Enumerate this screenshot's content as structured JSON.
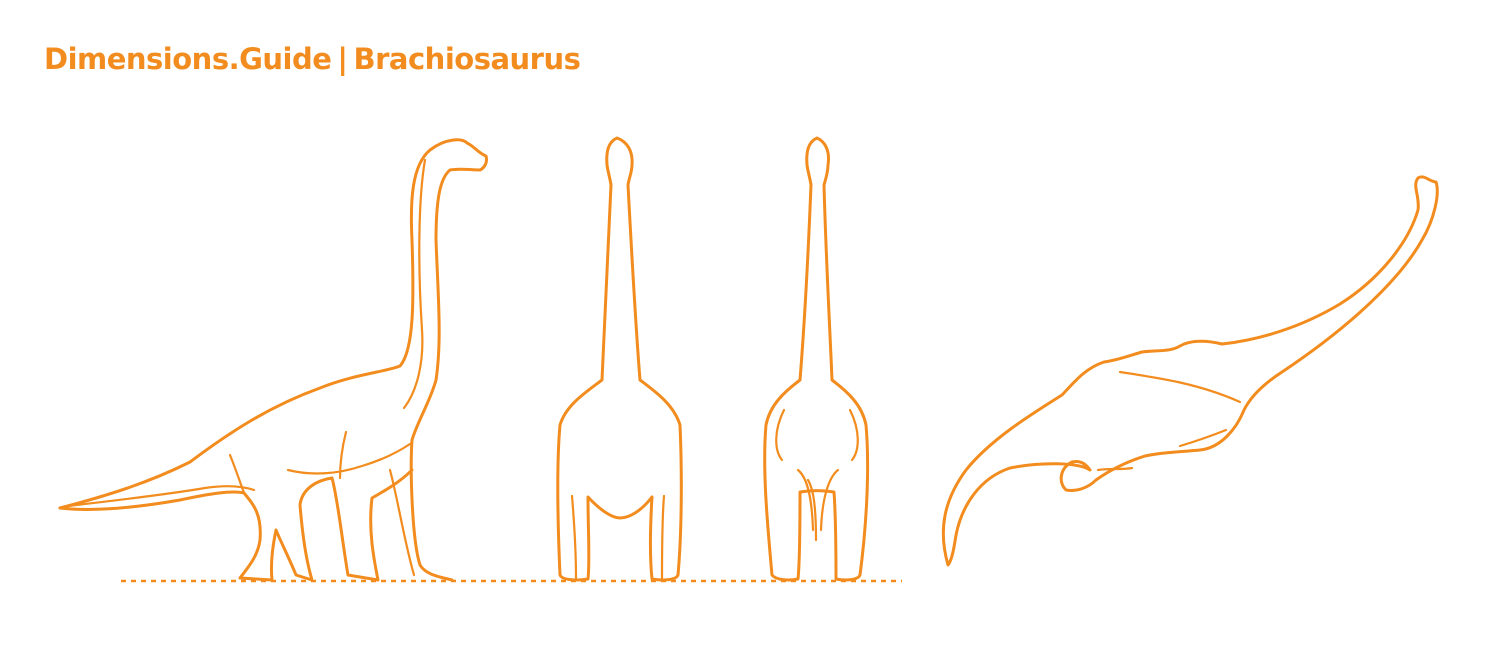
{
  "header": {
    "site": "Dimensions.Guide",
    "separator": "|",
    "subject": "Brachiosaurus"
  },
  "colors": {
    "accent": "#F28C1E",
    "background": "#FFFFFF"
  },
  "figures": [
    {
      "view": "side-view"
    },
    {
      "view": "front-view"
    },
    {
      "view": "rear-view"
    },
    {
      "view": "top-view"
    }
  ]
}
